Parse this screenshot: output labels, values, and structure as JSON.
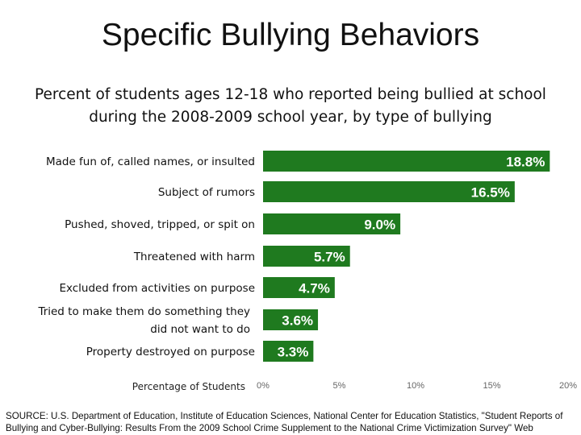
{
  "slide": {
    "title": "Specific Bullying Behaviors",
    "subtitle": "Percent of students ages 12-18 who reported being bullied at school during the 2008-2009 school year, by type of bullying",
    "source": "SOURCE: U.S. Department of Education, Institute of Education Sciences, National Center for Education Statistics, \"Student Reports of Bullying and Cyber-Bullying: Results From the 2009 School Crime Supplement to the National Crime Victimization Survey\" Web"
  },
  "chart_data": {
    "type": "bar",
    "orientation": "horizontal",
    "categories": [
      "Made fun of, called names, or insulted",
      "Subject of rumors",
      "Pushed, shoved, tripped, or spit on",
      "Threatened with harm",
      "Excluded from activities on purpose",
      "Tried to make them do something they did not want to do",
      "Property destroyed on purpose"
    ],
    "category_lines": [
      [
        "Made fun of, called names, or insulted"
      ],
      [
        "Subject of rumors"
      ],
      [
        "Pushed, shoved, tripped, or spit on"
      ],
      [
        "Threatened with harm"
      ],
      [
        "Excluded from activities on purpose"
      ],
      [
        "Tried to make them do something they",
        "did not want to do"
      ],
      [
        "Property destroyed on purpose"
      ]
    ],
    "values": [
      18.8,
      16.5,
      9.0,
      5.7,
      4.7,
      3.6,
      3.3
    ],
    "data_labels": [
      "18.8%",
      "16.5%",
      "9.0%",
      "5.7%",
      "4.7%",
      "3.6%",
      "3.3%"
    ],
    "xlabel": "Percentage of Students",
    "xlim": [
      0,
      20
    ],
    "xticks": [
      0,
      5,
      10,
      15,
      20
    ],
    "xtick_labels": [
      "0%",
      "5%",
      "10%",
      "15%",
      "20%"
    ],
    "grid": false,
    "legend": "none",
    "colors": {
      "bar": "#1f7a1f",
      "data_label": "#ffffff",
      "tick": "#666666"
    }
  }
}
